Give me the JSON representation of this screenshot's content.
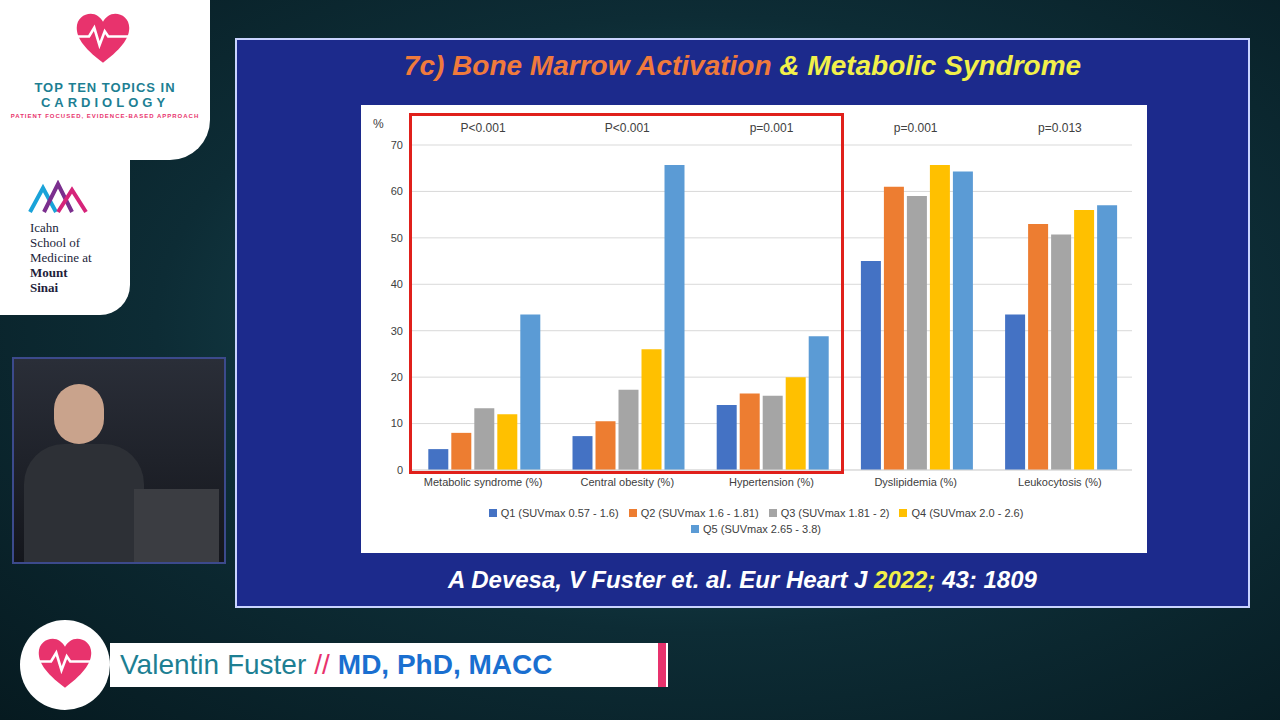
{
  "slide": {
    "title_parts": [
      "7c) Bone Marrow Activation",
      "& Metabolic Syndrome"
    ],
    "citation_parts": [
      "A Devesa, V Fuster et. al. Eur Heart J",
      "2022;",
      "43: 1809"
    ],
    "logo_lines": [
      "TOP TEN TOPICS IN",
      "CARDIOLOGY"
    ],
    "logo_tagline": "PATIENT FOCUSED, EVIDENCE-BASED APPROACH",
    "school_lines": [
      "Icahn",
      "School of",
      "Medicine at",
      "Mount",
      "Sinai"
    ],
    "speaker": "Valentin Fuster",
    "separator": "//",
    "credentials": "MD, PhD, MACC"
  },
  "chart_data": {
    "type": "bar",
    "y_label": "%",
    "categories": [
      "Metabolic syndrome (%)",
      "Central obesity (%)",
      "Hypertension (%)",
      "Dyslipidemia (%)",
      "Leukocytosis (%)"
    ],
    "annotations": [
      "P<0.001",
      "P<0.001",
      "p=0.001",
      "p=0.001",
      "p=0.013"
    ],
    "series": [
      {
        "name": "Q1 (SUVmax 0.57 - 1.6)",
        "color": "#4472c4",
        "values": [
          4.5,
          7.3,
          14,
          45,
          33.5
        ]
      },
      {
        "name": "Q2 (SUVmax 1.6 - 1.81)",
        "color": "#ed7d31",
        "values": [
          8,
          10.5,
          16.5,
          61,
          53
        ]
      },
      {
        "name": "Q3 (SUVmax 1.81 - 2)",
        "color": "#a5a5a5",
        "values": [
          13.3,
          17.3,
          16,
          59,
          50.7
        ]
      },
      {
        "name": "Q4 (SUVmax 2.0 - 2.6)",
        "color": "#ffc000",
        "values": [
          12,
          26,
          20,
          65.7,
          56
        ]
      },
      {
        "name": "Q5 (SUVmax 2.65 - 3.8)",
        "color": "#5b9bd5",
        "values": [
          33.5,
          65.7,
          28.8,
          64.3,
          57
        ]
      }
    ],
    "ylim": [
      0,
      70
    ],
    "yticks": [
      0,
      10,
      20,
      30,
      40,
      50,
      60,
      70
    ],
    "grid": true,
    "legend": "bottom"
  }
}
